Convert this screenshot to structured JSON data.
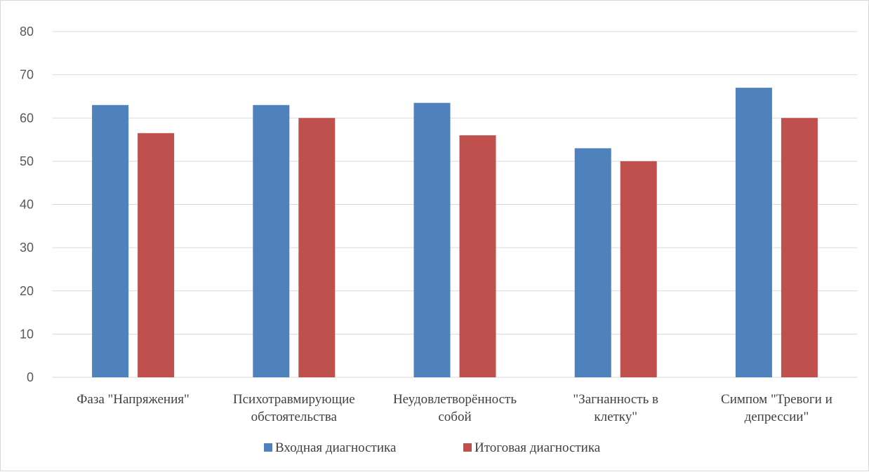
{
  "chart_data": {
    "type": "bar",
    "categories": [
      [
        "Фаза \"Напряжения\""
      ],
      [
        "Психотравмирующие",
        "обстоятельства"
      ],
      [
        "Неудовлетворённость",
        "собой"
      ],
      [
        "\"Загнанность в",
        "клетку\""
      ],
      [
        "Симпом \"Тревоги и",
        "депрессии\""
      ]
    ],
    "series": [
      {
        "name": "Входная диагностика",
        "color": "#4f81bd",
        "values": [
          63,
          63,
          63.5,
          53,
          67
        ]
      },
      {
        "name": "Итоговая диагностика",
        "color": "#c0504d",
        "values": [
          56.5,
          60,
          56,
          50,
          60
        ]
      }
    ],
    "ylim": [
      0,
      80
    ],
    "yticks": [
      0,
      10,
      20,
      30,
      40,
      50,
      60,
      70,
      80
    ],
    "grid": true,
    "legend": "bottom",
    "gridColor": "#d9d9d9"
  }
}
